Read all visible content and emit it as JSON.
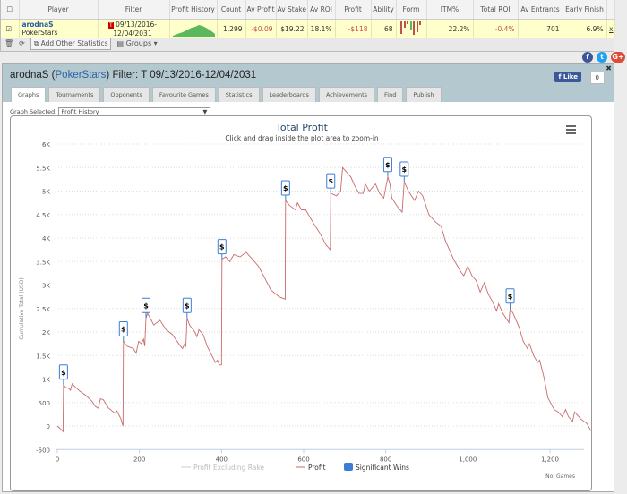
{
  "stats_table": {
    "headers": [
      "Player",
      "Filter",
      "Profit History",
      "Count",
      "Av Profit",
      "Av Stake",
      "Av ROI",
      "Profit",
      "Ability",
      "Form",
      "ITM%",
      "Total ROI",
      "Av Entrants",
      "Early Finish"
    ],
    "row": {
      "player": "arodnaS",
      "network": "PokerStars",
      "filter": "09/13/2016-12/04/2031",
      "filter_badge": "T",
      "count": "1,299",
      "av_profit": "-$0.09",
      "av_stake": "$19.22",
      "av_roi": "18.1%",
      "profit": "-$118",
      "ability": "68",
      "itm": "22.2%",
      "total_roi": "-0.4%",
      "av_entrants": "701",
      "early_finish": "6.9%",
      "remove": "x"
    },
    "toolbar": {
      "add_stats": "Add Other Statistics",
      "groups": "Groups"
    }
  },
  "social": {
    "facebook": "f",
    "twitter": "t",
    "google": "G+"
  },
  "panel": {
    "player": "arodnaS",
    "network": "PokerStars",
    "filter_label": "Filter:",
    "filter": "T 09/13/2016-12/04/2031",
    "like": "Like",
    "like_count": "0",
    "tabs": [
      "Graphs",
      "Tournaments",
      "Opponents",
      "Favourite Games",
      "Statistics",
      "Leaderboards",
      "Achievements",
      "Find",
      "Publish"
    ],
    "graph_selected_label": "Graph Selected:",
    "graph_selected": "Profit History"
  },
  "colors": {
    "profit": "#c96a6a",
    "wins": "#3a7fd5",
    "panel_header": "#b3c8cf"
  },
  "chart_data": {
    "type": "line",
    "title": "Total Profit",
    "subtitle": "Click and drag inside the plot area to zoom-in",
    "xlabel": "No. Games",
    "ylabel": "Cumulative Total (USD)",
    "xlim": [
      0,
      1300
    ],
    "ylim": [
      -500,
      6000
    ],
    "xticks": [
      0,
      200,
      400,
      600,
      800,
      1000,
      1200
    ],
    "xtick_labels": [
      "0",
      "200",
      "400",
      "600",
      "800",
      "1,000",
      "1,200"
    ],
    "yticks": [
      -500,
      0,
      500,
      1000,
      1500,
      2000,
      2500,
      3000,
      3500,
      4000,
      4500,
      5000,
      5500,
      6000
    ],
    "ytick_labels": [
      "-500",
      "0",
      "500",
      "1K",
      "1.5K",
      "2K",
      "2.5K",
      "3K",
      "3.5K",
      "4K",
      "4.5K",
      "5K",
      "5.5K",
      "6K"
    ],
    "legend": [
      "Profit Excluding Rake",
      "Profit",
      "Significant Wins"
    ],
    "legend_placement": "bottom",
    "series": [
      {
        "name": "Profit",
        "points": [
          [
            0,
            0
          ],
          [
            10,
            -80
          ],
          [
            14,
            -120
          ],
          [
            15,
            880
          ],
          [
            20,
            820
          ],
          [
            28,
            800
          ],
          [
            32,
            760
          ],
          [
            36,
            900
          ],
          [
            45,
            820
          ],
          [
            55,
            740
          ],
          [
            70,
            650
          ],
          [
            85,
            520
          ],
          [
            92,
            420
          ],
          [
            100,
            380
          ],
          [
            105,
            580
          ],
          [
            112,
            560
          ],
          [
            125,
            380
          ],
          [
            135,
            310
          ],
          [
            140,
            270
          ],
          [
            145,
            320
          ],
          [
            155,
            150
          ],
          [
            160,
            0
          ],
          [
            161,
            1800
          ],
          [
            170,
            1700
          ],
          [
            185,
            1650
          ],
          [
            192,
            1550
          ],
          [
            198,
            1800
          ],
          [
            205,
            1750
          ],
          [
            210,
            1850
          ],
          [
            213,
            1700
          ],
          [
            216,
            2300
          ],
          [
            220,
            2400
          ],
          [
            235,
            2150
          ],
          [
            250,
            2250
          ],
          [
            265,
            2050
          ],
          [
            280,
            1950
          ],
          [
            300,
            1700
          ],
          [
            305,
            1650
          ],
          [
            310,
            1750
          ],
          [
            313,
            1700
          ],
          [
            316,
            2300
          ],
          [
            322,
            2150
          ],
          [
            335,
            2000
          ],
          [
            340,
            1900
          ],
          [
            345,
            2050
          ],
          [
            355,
            1950
          ],
          [
            365,
            1700
          ],
          [
            385,
            1350
          ],
          [
            390,
            1400
          ],
          [
            395,
            1300
          ],
          [
            400,
            1300
          ],
          [
            401,
            3550
          ],
          [
            410,
            3600
          ],
          [
            420,
            3500
          ],
          [
            430,
            3650
          ],
          [
            445,
            3600
          ],
          [
            460,
            3700
          ],
          [
            475,
            3550
          ],
          [
            490,
            3400
          ],
          [
            505,
            3150
          ],
          [
            520,
            2900
          ],
          [
            540,
            2750
          ],
          [
            555,
            2700
          ],
          [
            556,
            4800
          ],
          [
            565,
            4700
          ],
          [
            580,
            4600
          ],
          [
            585,
            4750
          ],
          [
            595,
            4600
          ],
          [
            605,
            4600
          ],
          [
            625,
            4300
          ],
          [
            640,
            4100
          ],
          [
            655,
            3850
          ],
          [
            665,
            3750
          ],
          [
            666,
            4950
          ],
          [
            680,
            4900
          ],
          [
            690,
            5000
          ],
          [
            695,
            5500
          ],
          [
            705,
            5400
          ],
          [
            715,
            5300
          ],
          [
            725,
            5100
          ],
          [
            735,
            4950
          ],
          [
            745,
            4950
          ],
          [
            750,
            5150
          ],
          [
            760,
            5000
          ],
          [
            775,
            5150
          ],
          [
            785,
            4950
          ],
          [
            795,
            4850
          ],
          [
            805,
            5300
          ],
          [
            810,
            5150
          ],
          [
            815,
            4850
          ],
          [
            830,
            4650
          ],
          [
            840,
            4550
          ],
          [
            845,
            5200
          ],
          [
            855,
            5000
          ],
          [
            870,
            4800
          ],
          [
            880,
            5000
          ],
          [
            890,
            4900
          ],
          [
            905,
            4500
          ],
          [
            920,
            4350
          ],
          [
            935,
            4250
          ],
          [
            945,
            3950
          ],
          [
            955,
            3750
          ],
          [
            965,
            3550
          ],
          [
            975,
            3400
          ],
          [
            985,
            3250
          ],
          [
            990,
            3200
          ],
          [
            1000,
            3400
          ],
          [
            1010,
            3200
          ],
          [
            1020,
            3100
          ],
          [
            1030,
            2850
          ],
          [
            1040,
            3050
          ],
          [
            1050,
            2800
          ],
          [
            1060,
            2650
          ],
          [
            1070,
            2450
          ],
          [
            1075,
            2600
          ],
          [
            1085,
            2400
          ],
          [
            1100,
            2200
          ],
          [
            1103,
            2500
          ],
          [
            1110,
            2400
          ],
          [
            1125,
            2100
          ],
          [
            1135,
            1800
          ],
          [
            1145,
            1650
          ],
          [
            1150,
            1750
          ],
          [
            1160,
            1500
          ],
          [
            1170,
            1350
          ],
          [
            1175,
            1400
          ],
          [
            1185,
            1050
          ],
          [
            1195,
            600
          ],
          [
            1210,
            350
          ],
          [
            1220,
            300
          ],
          [
            1230,
            200
          ],
          [
            1238,
            350
          ],
          [
            1245,
            200
          ],
          [
            1255,
            100
          ],
          [
            1260,
            300
          ],
          [
            1275,
            150
          ],
          [
            1290,
            50
          ],
          [
            1300,
            -100
          ]
        ]
      }
    ],
    "significant_wins": {
      "marker": "$",
      "points": [
        [
          15,
          880
        ],
        [
          161,
          1800
        ],
        [
          216,
          2300
        ],
        [
          316,
          2300
        ],
        [
          401,
          3550
        ],
        [
          556,
          4800
        ],
        [
          666,
          4950
        ],
        [
          805,
          5300
        ],
        [
          845,
          5200
        ],
        [
          1103,
          2500
        ]
      ]
    }
  }
}
